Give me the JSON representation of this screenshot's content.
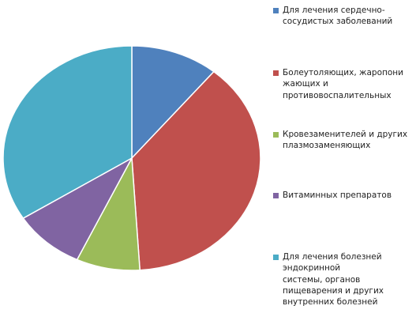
{
  "chart_data": {
    "type": "pie",
    "categories": [
      "Для лечения сердечно-\nсосудистых заболеваний",
      "Болеутоляющих, жаропони\nжающих и\nпротивовоспалительных",
      "Кровезаменителей и других\nплазмозаменяющих",
      "Витаминных препаратов",
      "Для лечения болезней\nэндокринной\nсистемы, органов\nпищеварения и других\nвнутренних болезней"
    ],
    "values": [
      11,
      38,
      8,
      9,
      34
    ],
    "colors": [
      "#4f81bd",
      "#c0504d",
      "#9bbb59",
      "#8064a2",
      "#4bacc6"
    ],
    "start_angle": "12 o'clock",
    "direction": "clockwise",
    "legend_position": "right"
  }
}
